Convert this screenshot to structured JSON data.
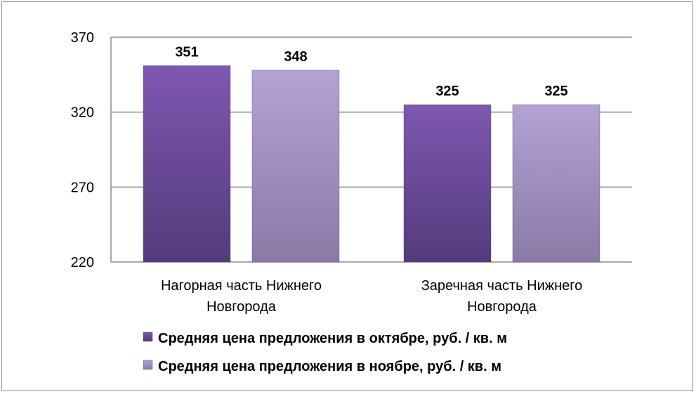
{
  "chart_data": {
    "type": "bar",
    "categories": [
      "Нагорная часть Нижнего Новгорода",
      "Заречная часть Нижнего Новгорода"
    ],
    "category_lines": [
      [
        "Нагорная часть Нижнего",
        "Новгорода"
      ],
      [
        "Заречная часть Нижнего",
        "Новгорода"
      ]
    ],
    "series": [
      {
        "name": "Средняя цена предложения в октябре, руб. / кв. м",
        "values": [
          351,
          325
        ],
        "color": "#6f4b9e"
      },
      {
        "name": "Средняя цена предложения в ноябре, руб. / кв. м",
        "values": [
          348,
          325
        ],
        "color": "#a595c6"
      }
    ],
    "ylim": [
      220,
      370
    ],
    "yticks": [
      220,
      270,
      320,
      370
    ],
    "grid": true,
    "legend_position": "bottom",
    "data_labels": true
  }
}
